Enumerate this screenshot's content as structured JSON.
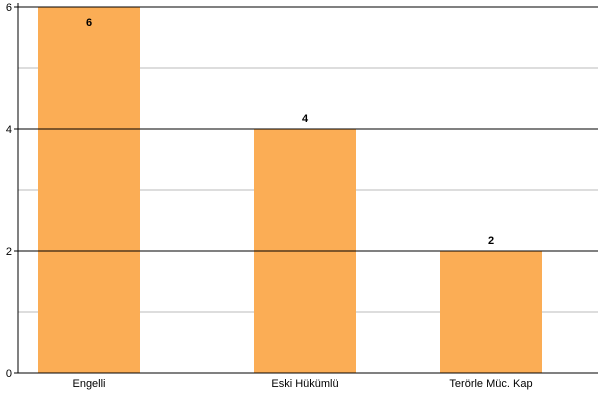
{
  "chart_data": {
    "type": "bar",
    "categories": [
      "Engelli",
      "Eski Hükümlü",
      "Terörle Müc. Kap"
    ],
    "values": [
      6,
      4,
      2
    ],
    "data_labels": [
      "6",
      "4",
      "2"
    ],
    "title": "",
    "xlabel": "",
    "ylabel": "",
    "ylim": [
      0,
      6
    ],
    "yticks": [
      0,
      2,
      4,
      6
    ],
    "ytick_labels": [
      "0",
      "2",
      "4",
      "6"
    ],
    "minor_gridlines": [
      1,
      3,
      5
    ],
    "grid": true,
    "legend": "none",
    "colors": {
      "bar": "#FBAD55",
      "major_grid": "#000000",
      "minor_grid": "#BBBBBB",
      "axis": "#000000"
    }
  }
}
